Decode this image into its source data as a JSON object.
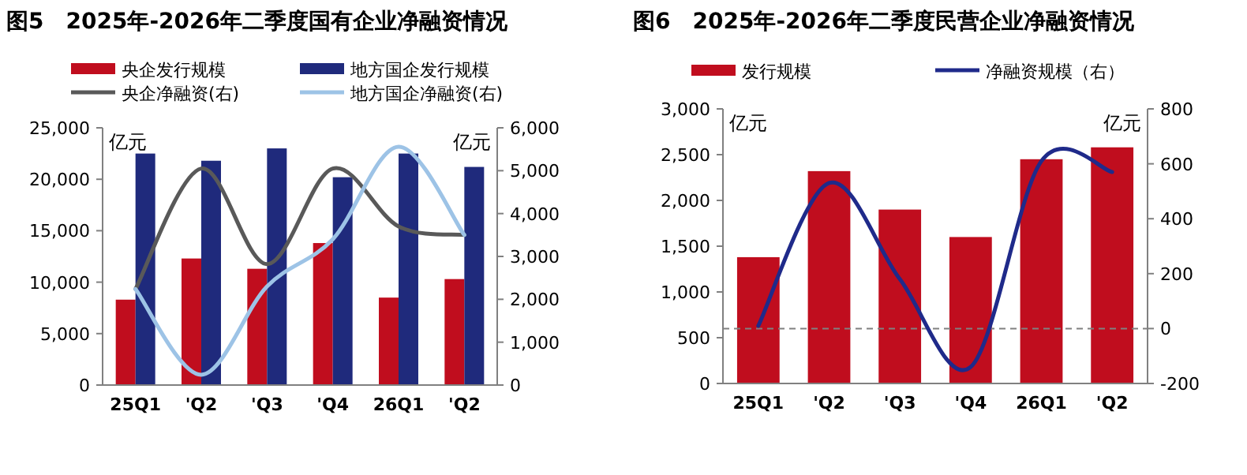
{
  "chart_data": [
    {
      "type": "bar",
      "title": "图5　2025年-2026年二季度国有企业净融资情况",
      "ylabel": "亿元",
      "y2label": "亿元",
      "categories": [
        "25Q1",
        "'Q2",
        "'Q3",
        "'Q4",
        "26Q1",
        "'Q2"
      ],
      "series": [
        {
          "name": "央企发行规模",
          "color": "#c00d1e",
          "values": [
            8300,
            12300,
            11300,
            13800,
            8500,
            10300
          ]
        },
        {
          "name": "地方国企发行规模",
          "color": "#1f2a7c",
          "values": [
            22500,
            21800,
            23000,
            20200,
            22500,
            21200
          ]
        },
        {
          "name": "央企净融资(右)",
          "type": "line",
          "axis": "y2",
          "color": "#595959",
          "values": [
            2240,
            5050,
            2820,
            5050,
            3700,
            3500
          ]
        },
        {
          "name": "地方国企净融资(右)",
          "type": "line",
          "axis": "y2",
          "color": "#9dc3e6",
          "values": [
            2240,
            240,
            2300,
            3400,
            5560,
            3500
          ]
        }
      ],
      "ylim": [
        0,
        25000
      ],
      "yticks": [
        {
          "value": 0,
          "label": "0"
        },
        {
          "value": 5000,
          "label": "5,000"
        },
        {
          "value": 10000,
          "label": "10,000"
        },
        {
          "value": 15000,
          "label": "15,000"
        },
        {
          "value": 20000,
          "label": "20,000"
        },
        {
          "value": 25000,
          "label": "25,000"
        }
      ],
      "y2lim": [
        0,
        6000
      ],
      "y2ticks": [
        {
          "value": 0,
          "label": "0"
        },
        {
          "value": 1000,
          "label": "1,000"
        },
        {
          "value": 2000,
          "label": "2,000"
        },
        {
          "value": 3000,
          "label": "3,000"
        },
        {
          "value": 4000,
          "label": "4,000"
        },
        {
          "value": 5000,
          "label": "5,000"
        },
        {
          "value": 6000,
          "label": "6,000"
        }
      ],
      "legend": "top",
      "grid": false
    },
    {
      "type": "bar",
      "title": "图6　2025年-2026年二季度民营企业净融资情况",
      "ylabel": "亿元",
      "y2label": "亿元",
      "categories": [
        "25Q1",
        "'Q2",
        "'Q3",
        "'Q4",
        "26Q1",
        "'Q2"
      ],
      "series": [
        {
          "name": "发行规模",
          "color": "#c00d1e",
          "values": [
            1380,
            2320,
            1900,
            1600,
            2450,
            2580
          ]
        },
        {
          "name": "净融资规模（右）",
          "type": "line",
          "axis": "y2",
          "color": "#1f2a8a",
          "values": [
            10,
            530,
            180,
            -140,
            610,
            570
          ]
        }
      ],
      "ylim": [
        0,
        3000
      ],
      "yticks": [
        {
          "value": 0,
          "label": "0"
        },
        500,
        {
          "value": 1000,
          "label": "1,000"
        },
        {
          "value": 1500,
          "label": "1,500"
        },
        {
          "value": 2000,
          "label": "2,000"
        },
        {
          "value": 2500,
          "label": "2,500"
        },
        {
          "value": 3000,
          "label": "3,000"
        }
      ],
      "y2lim": [
        -200,
        800
      ],
      "y2ticks": [
        -200,
        {
          "value": 0,
          "label": "0"
        },
        200,
        400,
        600,
        800
      ],
      "ref_lines": [
        {
          "axis": "y2",
          "value": 0,
          "color": "#808080",
          "line_style": "dashed"
        }
      ],
      "legend": "top",
      "grid": false
    }
  ]
}
